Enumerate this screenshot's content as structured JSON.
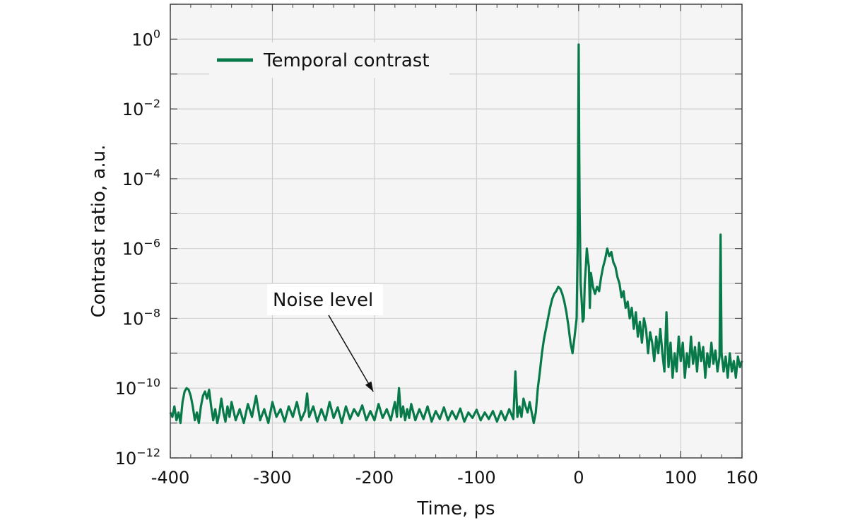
{
  "chart_data": {
    "type": "line",
    "xlabel": "Time, ps",
    "ylabel": "Contrast ratio, a.u.",
    "xlim": [
      -400,
      160
    ],
    "ylim": [
      1e-12,
      10.0
    ],
    "yscale": "log",
    "grid": true,
    "legend_position": "top-left",
    "x_ticks": [
      -400,
      -300,
      -200,
      -100,
      0,
      100,
      160
    ],
    "x_tick_labels": [
      "-400",
      "-300",
      "-200",
      "-100",
      "0",
      "100",
      "160"
    ],
    "y_ticks": [
      {
        "exponent": 0,
        "base": "10",
        "sup": "0"
      },
      {
        "exponent": -2,
        "base": "10",
        "sup": "−2"
      },
      {
        "exponent": -4,
        "base": "10",
        "sup": "−4"
      },
      {
        "exponent": -6,
        "base": "10",
        "sup": "−6"
      },
      {
        "exponent": -8,
        "base": "10",
        "sup": "−8"
      },
      {
        "exponent": -10,
        "base": "10",
        "sup": "−10"
      },
      {
        "exponent": -12,
        "base": "10",
        "sup": "−12"
      }
    ],
    "series": [
      {
        "name": "Temporal contrast",
        "color": "#087a4a",
        "points": [
          [
            -400,
            2e-11
          ],
          [
            -398,
            1.5e-11
          ],
          [
            -396,
            3e-11
          ],
          [
            -394,
            1.2e-11
          ],
          [
            -392,
            2e-11
          ],
          [
            -390,
            1e-11
          ],
          [
            -388,
            4e-11
          ],
          [
            -386,
            8e-11
          ],
          [
            -384,
            1e-10
          ],
          [
            -382,
            9e-11
          ],
          [
            -380,
            6e-11
          ],
          [
            -378,
            3e-11
          ],
          [
            -376,
            1.2e-11
          ],
          [
            -374,
            2e-11
          ],
          [
            -372,
            1e-11
          ],
          [
            -370,
            3e-11
          ],
          [
            -368,
            6e-11
          ],
          [
            -366,
            8e-11
          ],
          [
            -364,
            5e-11
          ],
          [
            -362,
            9e-11
          ],
          [
            -360,
            3e-11
          ],
          [
            -358,
            1.2e-11
          ],
          [
            -356,
            2.5e-11
          ],
          [
            -354,
            1e-11
          ],
          [
            -352,
            1.8e-11
          ],
          [
            -350,
            5e-11
          ],
          [
            -348,
            2e-11
          ],
          [
            -346,
            1.1e-11
          ],
          [
            -344,
            3e-11
          ],
          [
            -342,
            1.5e-11
          ],
          [
            -340,
            4e-11
          ],
          [
            -336,
            1.2e-11
          ],
          [
            -332,
            2.5e-11
          ],
          [
            -328,
            1e-11
          ],
          [
            -324,
            3.5e-11
          ],
          [
            -320,
            1.5e-11
          ],
          [
            -316,
            6e-11
          ],
          [
            -312,
            1.2e-11
          ],
          [
            -308,
            2.5e-11
          ],
          [
            -304,
            1e-11
          ],
          [
            -300,
            4e-11
          ],
          [
            -296,
            1.5e-11
          ],
          [
            -292,
            2.5e-11
          ],
          [
            -288,
            1.1e-11
          ],
          [
            -284,
            3e-11
          ],
          [
            -280,
            1.5e-11
          ],
          [
            -276,
            4e-11
          ],
          [
            -272,
            1.2e-11
          ],
          [
            -268,
            2.2e-11
          ],
          [
            -266,
            7e-11
          ],
          [
            -264,
            1.5e-11
          ],
          [
            -260,
            3e-11
          ],
          [
            -256,
            1.1e-11
          ],
          [
            -252,
            2.5e-11
          ],
          [
            -248,
            1.2e-11
          ],
          [
            -244,
            4e-11
          ],
          [
            -240,
            1.4e-11
          ],
          [
            -236,
            2.8e-11
          ],
          [
            -232,
            1e-11
          ],
          [
            -228,
            3e-11
          ],
          [
            -224,
            1.3e-11
          ],
          [
            -220,
            2.5e-11
          ],
          [
            -216,
            1.6e-11
          ],
          [
            -212,
            3.2e-11
          ],
          [
            -208,
            1.2e-11
          ],
          [
            -204,
            2.2e-11
          ],
          [
            -200,
            1.2e-11
          ],
          [
            -196,
            3.5e-11
          ],
          [
            -192,
            1.4e-11
          ],
          [
            -188,
            2.5e-11
          ],
          [
            -184,
            1.2e-11
          ],
          [
            -180,
            4e-11
          ],
          [
            -178,
            1.5e-11
          ],
          [
            -176,
            1e-10
          ],
          [
            -174,
            1.5e-11
          ],
          [
            -172,
            3e-11
          ],
          [
            -170,
            1.2e-11
          ],
          [
            -168,
            2.5e-11
          ],
          [
            -166,
            1.4e-11
          ],
          [
            -164,
            3.5e-11
          ],
          [
            -160,
            1.2e-11
          ],
          [
            -156,
            2.5e-11
          ],
          [
            -152,
            1.3e-11
          ],
          [
            -148,
            3e-11
          ],
          [
            -144,
            1.1e-11
          ],
          [
            -140,
            2.2e-11
          ],
          [
            -136,
            1.3e-11
          ],
          [
            -132,
            2.8e-11
          ],
          [
            -128,
            1.2e-11
          ],
          [
            -124,
            2.2e-11
          ],
          [
            -120,
            1.3e-11
          ],
          [
            -116,
            2.6e-11
          ],
          [
            -112,
            1.1e-11
          ],
          [
            -108,
            2e-11
          ],
          [
            -104,
            1.4e-11
          ],
          [
            -100,
            2.4e-11
          ],
          [
            -96,
            1.2e-11
          ],
          [
            -92,
            2e-11
          ],
          [
            -88,
            1.3e-11
          ],
          [
            -84,
            2.2e-11
          ],
          [
            -80,
            1.1e-11
          ],
          [
            -76,
            2.2e-11
          ],
          [
            -72,
            1.2e-11
          ],
          [
            -68,
            2.5e-11
          ],
          [
            -64,
            1.3e-11
          ],
          [
            -62,
            3e-10
          ],
          [
            -60,
            1.5e-11
          ],
          [
            -58,
            3e-11
          ],
          [
            -56,
            1.5e-11
          ],
          [
            -54,
            5e-11
          ],
          [
            -52,
            3e-11
          ],
          [
            -50,
            2e-11
          ],
          [
            -48,
            4e-11
          ],
          [
            -46,
            2e-11
          ],
          [
            -44,
            1e-11
          ],
          [
            -42,
            2e-11
          ],
          [
            -40,
            1e-10
          ],
          [
            -38,
            3e-10
          ],
          [
            -36,
            1e-09
          ],
          [
            -34,
            2.5e-09
          ],
          [
            -32,
            5e-09
          ],
          [
            -30,
            1e-08
          ],
          [
            -28,
            2e-08
          ],
          [
            -26,
            3.5e-08
          ],
          [
            -24,
            5e-08
          ],
          [
            -22,
            6e-08
          ],
          [
            -20,
            8e-08
          ],
          [
            -18,
            7e-08
          ],
          [
            -16,
            5e-08
          ],
          [
            -14,
            3e-08
          ],
          [
            -12,
            1.5e-08
          ],
          [
            -10,
            6e-09
          ],
          [
            -8,
            2e-09
          ],
          [
            -6,
            1e-09
          ],
          [
            -4,
            3e-09
          ],
          [
            -2,
            1e-08
          ],
          [
            -1,
            1e-06
          ],
          [
            0,
            0.7
          ],
          [
            0.5,
            0.001
          ],
          [
            1,
            1e-05
          ],
          [
            2,
            1e-07
          ],
          [
            3,
            3e-08
          ],
          [
            4,
            8e-09
          ],
          [
            5,
            1e-08
          ],
          [
            6,
            1e-07
          ],
          [
            7,
            3e-07
          ],
          [
            8,
            1e-06
          ],
          [
            9,
            5e-07
          ],
          [
            10,
            3e-07
          ],
          [
            11,
            2e-08
          ],
          [
            12,
            2e-07
          ],
          [
            14,
            8e-08
          ],
          [
            16,
            5e-08
          ],
          [
            18,
            8e-08
          ],
          [
            20,
            6e-08
          ],
          [
            22,
            1.5e-07
          ],
          [
            24,
            3e-07
          ],
          [
            26,
            5e-07
          ],
          [
            28,
            1e-06
          ],
          [
            30,
            6e-07
          ],
          [
            32,
            8e-07
          ],
          [
            34,
            4e-07
          ],
          [
            36,
            3e-07
          ],
          [
            38,
            1.5e-07
          ],
          [
            40,
            1e-07
          ],
          [
            42,
            4e-08
          ],
          [
            44,
            6e-08
          ],
          [
            46,
            2e-08
          ],
          [
            48,
            3e-08
          ],
          [
            50,
            1e-08
          ],
          [
            52,
            2e-08
          ],
          [
            54,
            5e-09
          ],
          [
            56,
            1.5e-08
          ],
          [
            58,
            3e-09
          ],
          [
            60,
            8e-09
          ],
          [
            62,
            2e-09
          ],
          [
            64,
            1e-08
          ],
          [
            66,
            5e-09
          ],
          [
            68,
            1e-09
          ],
          [
            70,
            4e-09
          ],
          [
            72,
            2e-09
          ],
          [
            74,
            6e-10
          ],
          [
            76,
            3e-09
          ],
          [
            78,
            1e-09
          ],
          [
            80,
            5e-09
          ],
          [
            82,
            1e-09
          ],
          [
            84,
            3e-10
          ],
          [
            86,
            1.5e-08
          ],
          [
            88,
            4e-10
          ],
          [
            90,
            2e-09
          ],
          [
            92,
            2e-10
          ],
          [
            94,
            1e-09
          ],
          [
            96,
            3e-10
          ],
          [
            98,
            3e-09
          ],
          [
            100,
            6e-10
          ],
          [
            102,
            2e-09
          ],
          [
            104,
            2e-10
          ],
          [
            106,
            1e-09
          ],
          [
            108,
            4e-10
          ],
          [
            110,
            3e-09
          ],
          [
            112,
            5e-10
          ],
          [
            114,
            1.5e-09
          ],
          [
            116,
            3e-10
          ],
          [
            118,
            2e-09
          ],
          [
            120,
            6e-10
          ],
          [
            122,
            1.5e-09
          ],
          [
            124,
            2e-10
          ],
          [
            126,
            1e-09
          ],
          [
            128,
            4e-10
          ],
          [
            130,
            2e-09
          ],
          [
            132,
            5e-10
          ],
          [
            134,
            1.2e-09
          ],
          [
            136,
            3e-10
          ],
          [
            138,
            8e-10
          ],
          [
            139,
            2.5e-06
          ],
          [
            140,
            1e-09
          ],
          [
            142,
            3e-10
          ],
          [
            144,
            8e-10
          ],
          [
            146,
            2e-10
          ],
          [
            148,
            1e-09
          ],
          [
            150,
            3e-10
          ],
          [
            152,
            6e-10
          ],
          [
            154,
            2e-10
          ],
          [
            156,
            8e-10
          ],
          [
            158,
            4e-10
          ],
          [
            160,
            6e-10
          ]
        ]
      }
    ],
    "annotations": [
      {
        "text": "Noise level",
        "target": [
          -215,
          1e-10
        ]
      }
    ]
  }
}
